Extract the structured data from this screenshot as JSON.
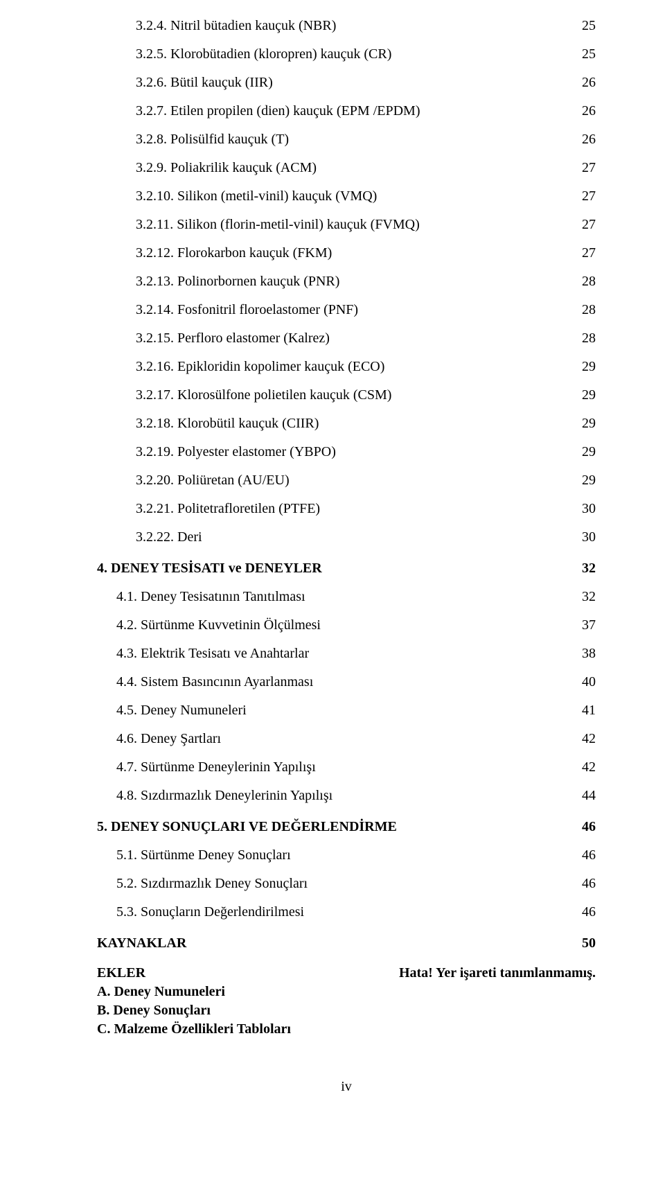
{
  "toc": [
    {
      "indent": 2,
      "bold": false,
      "label": "3.2.4. Nitril bütadien kauçuk (NBR)",
      "page": "25"
    },
    {
      "indent": 2,
      "bold": false,
      "label": "3.2.5. Klorobütadien (kloropren) kauçuk (CR)",
      "page": "25"
    },
    {
      "indent": 2,
      "bold": false,
      "label": "3.2.6. Bütil kauçuk (IIR)",
      "page": "26"
    },
    {
      "indent": 2,
      "bold": false,
      "label": "3.2.7. Etilen propilen (dien) kauçuk (EPM /EPDM)",
      "page": "26"
    },
    {
      "indent": 2,
      "bold": false,
      "label": "3.2.8. Polisülfid kauçuk (T)",
      "page": "26"
    },
    {
      "indent": 2,
      "bold": false,
      "label": "3.2.9. Poliakrilik kauçuk (ACM)",
      "page": "27"
    },
    {
      "indent": 2,
      "bold": false,
      "label": "3.2.10. Silikon (metil-vinil) kauçuk (VMQ)",
      "page": "27"
    },
    {
      "indent": 2,
      "bold": false,
      "label": "3.2.11. Silikon (florin-metil-vinil) kauçuk (FVMQ)",
      "page": "27"
    },
    {
      "indent": 2,
      "bold": false,
      "label": "3.2.12. Florokarbon kauçuk (FKM)",
      "page": "27"
    },
    {
      "indent": 2,
      "bold": false,
      "label": "3.2.13. Polinorbornen kauçuk (PNR)",
      "page": "28"
    },
    {
      "indent": 2,
      "bold": false,
      "label": "3.2.14. Fosfonitril floroelastomer (PNF)",
      "page": "28"
    },
    {
      "indent": 2,
      "bold": false,
      "label": "3.2.15. Perfloro elastomer (Kalrez)",
      "page": "28"
    },
    {
      "indent": 2,
      "bold": false,
      "label": "3.2.16. Epikloridin kopolimer kauçuk (ECO)",
      "page": "29"
    },
    {
      "indent": 2,
      "bold": false,
      "label": "3.2.17. Klorosülfone polietilen kauçuk (CSM)",
      "page": "29"
    },
    {
      "indent": 2,
      "bold": false,
      "label": "3.2.18. Klorobütil kauçuk (CIIR)",
      "page": "29"
    },
    {
      "indent": 2,
      "bold": false,
      "label": "3.2.19. Polyester elastomer (YBPO)",
      "page": "29"
    },
    {
      "indent": 2,
      "bold": false,
      "label": "3.2.20. Poliüretan (AU/EU)",
      "page": "29"
    },
    {
      "indent": 2,
      "bold": false,
      "label": "3.2.21. Politetrafloretilen (PTFE)",
      "page": "30"
    },
    {
      "indent": 2,
      "bold": false,
      "label": "3.2.22. Deri",
      "page": "30"
    },
    {
      "indent": 0,
      "bold": true,
      "gap": true,
      "label": "4. DENEY TESİSATI ve DENEYLER",
      "page": "32"
    },
    {
      "indent": 1,
      "bold": false,
      "label": "4.1. Deney Tesisatının Tanıtılması",
      "page": "32"
    },
    {
      "indent": 1,
      "bold": false,
      "label": "4.2. Sürtünme Kuvvetinin Ölçülmesi",
      "page": "37"
    },
    {
      "indent": 1,
      "bold": false,
      "label": "4.3. Elektrik Tesisatı ve Anahtarlar",
      "page": "38"
    },
    {
      "indent": 1,
      "bold": false,
      "label": "4.4. Sistem Basıncının Ayarlanması",
      "page": "40"
    },
    {
      "indent": 1,
      "bold": false,
      "label": "4.5. Deney Numuneleri",
      "page": "41"
    },
    {
      "indent": 1,
      "bold": false,
      "label": "4.6. Deney Şartları",
      "page": "42"
    },
    {
      "indent": 1,
      "bold": false,
      "label": "4.7. Sürtünme Deneylerinin Yapılışı",
      "page": "42"
    },
    {
      "indent": 1,
      "bold": false,
      "label": "4.8. Sızdırmazlık Deneylerinin Yapılışı",
      "page": "44"
    },
    {
      "indent": 0,
      "bold": true,
      "gap": true,
      "label": "5. DENEY SONUÇLARI VE DEĞERLENDİRME",
      "page": "46"
    },
    {
      "indent": 1,
      "bold": false,
      "label": "5.1. Sürtünme Deney Sonuçları",
      "page": "46"
    },
    {
      "indent": 1,
      "bold": false,
      "label": "5.2. Sızdırmazlık Deney Sonuçları",
      "page": "46"
    },
    {
      "indent": 1,
      "bold": false,
      "label": "5.3. Sonuçların Değerlendirilmesi",
      "page": "46"
    },
    {
      "indent": 0,
      "bold": true,
      "gap": true,
      "label": "KAYNAKLAR",
      "page": "50"
    }
  ],
  "ekler": {
    "title": "EKLER",
    "note": "Hata! Yer işareti tanımlanmamış.",
    "items": [
      "A. Deney Numuneleri",
      "B. Deney Sonuçları",
      "C. Malzeme Özellikleri Tabloları"
    ]
  },
  "footer": "iv"
}
